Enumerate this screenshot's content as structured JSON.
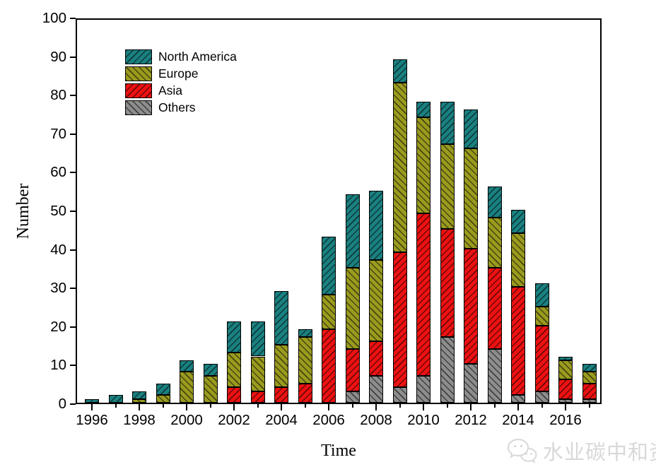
{
  "chart_data": {
    "type": "bar",
    "stacked": true,
    "xlabel": "Time",
    "ylabel": "Number",
    "ylim": [
      0,
      100
    ],
    "ytick_step": 10,
    "x_label_every_years": 2,
    "grid": false,
    "legend_position": "upper-left",
    "legend": [
      "North America",
      "Europe",
      "Asia",
      "Others"
    ],
    "years": [
      1996,
      1997,
      1998,
      1999,
      2000,
      2001,
      2002,
      2003,
      2004,
      2005,
      2006,
      2007,
      2008,
      2009,
      2010,
      2011,
      2012,
      2013,
      2014,
      2015,
      2016,
      2017
    ],
    "series": [
      {
        "name": "Others",
        "color": "#8D8D8D",
        "hatch": "\\",
        "values": [
          0,
          0,
          0,
          0,
          0,
          0,
          0,
          0,
          0,
          0,
          0,
          3,
          7,
          4,
          7,
          17,
          10,
          14,
          2,
          3,
          1,
          1
        ]
      },
      {
        "name": "Asia",
        "color": "#EE1111",
        "hatch": "/",
        "values": [
          0,
          0,
          0,
          0,
          0,
          0,
          4,
          3,
          4,
          5,
          19,
          11,
          9,
          35,
          42,
          28,
          30,
          21,
          28,
          17,
          5,
          4
        ]
      },
      {
        "name": "Europe",
        "color": "#9A9B1E",
        "hatch": "\\",
        "values": [
          0,
          0,
          1,
          2,
          8,
          7,
          9,
          9,
          11,
          12,
          9,
          21,
          21,
          44,
          25,
          22,
          26,
          13,
          14,
          5,
          5,
          3
        ]
      },
      {
        "name": "North America",
        "color": "#1A8080",
        "hatch": "/",
        "values": [
          1,
          2,
          2,
          3,
          3,
          3,
          8,
          9,
          14,
          2,
          15,
          19,
          18,
          6,
          4,
          11,
          10,
          8,
          6,
          6,
          1,
          2
        ]
      }
    ],
    "totals": [
      1,
      2,
      3,
      5,
      11,
      10,
      21,
      21,
      29,
      19,
      43,
      54,
      55,
      89,
      78,
      78,
      76,
      56,
      50,
      31,
      12,
      10
    ]
  },
  "watermark": {
    "icon": "wechat-icon",
    "text": "水业碳中和资"
  }
}
